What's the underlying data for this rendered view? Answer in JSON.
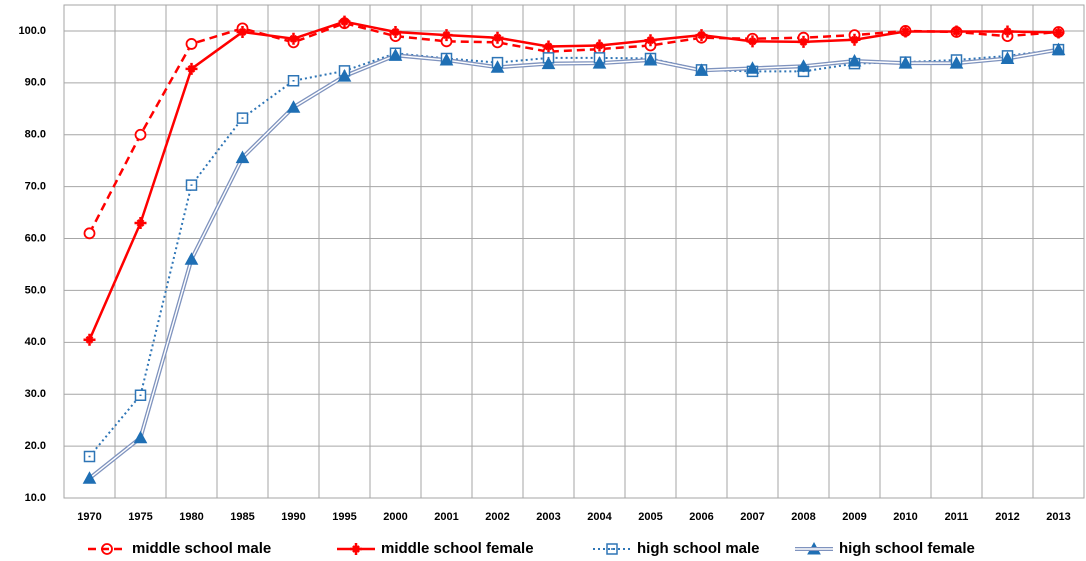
{
  "chart_data": {
    "type": "line",
    "categories": [
      "1970",
      "1975",
      "1980",
      "1985",
      "1990",
      "1995",
      "2000",
      "2001",
      "2002",
      "2003",
      "2004",
      "2005",
      "2006",
      "2007",
      "2008",
      "2009",
      "2010",
      "2011",
      "2012",
      "2013"
    ],
    "series": [
      {
        "name": "middle school male",
        "color": "#ff0000",
        "line_style": "dashed",
        "marker": "circle",
        "values": [
          61.0,
          80.0,
          97.5,
          100.5,
          97.8,
          101.5,
          99.0,
          98.0,
          97.8,
          96.0,
          96.5,
          97.2,
          98.7,
          98.5,
          98.7,
          99.2,
          100.0,
          99.8,
          99.0,
          99.8
        ]
      },
      {
        "name": "middle school female",
        "color": "#ff0000",
        "line_style": "solid",
        "marker": "plus",
        "values": [
          40.5,
          63.0,
          92.7,
          99.8,
          98.5,
          101.8,
          99.8,
          99.2,
          98.7,
          97.0,
          97.2,
          98.2,
          99.2,
          98.0,
          97.9,
          98.3,
          99.9,
          99.9,
          99.9,
          99.7
        ]
      },
      {
        "name": "high school male",
        "color": "#2e75b6",
        "line_style": "dotted",
        "marker": "square",
        "values": [
          18.0,
          29.8,
          70.3,
          83.2,
          90.4,
          92.3,
          95.7,
          94.7,
          93.9,
          94.8,
          94.8,
          94.7,
          92.5,
          92.2,
          92.2,
          93.7,
          94.0,
          94.4,
          95.2,
          96.4
        ]
      },
      {
        "name": "high school female",
        "color": "#1f6fb4",
        "line_style": "double",
        "marker": "triangle",
        "values": [
          13.8,
          21.6,
          56.0,
          75.6,
          85.3,
          91.3,
          95.3,
          94.4,
          93.0,
          93.7,
          93.8,
          94.4,
          92.4,
          92.8,
          93.2,
          94.2,
          93.8,
          93.8,
          94.7,
          96.4
        ]
      }
    ],
    "ylim": [
      10,
      105
    ],
    "yticks": [
      {
        "value": 10,
        "label": "10.0"
      },
      {
        "value": 20,
        "label": "20.0"
      },
      {
        "value": 30,
        "label": "30.0"
      },
      {
        "value": 40,
        "label": "40.0"
      },
      {
        "value": 50,
        "label": "50.0"
      },
      {
        "value": 60,
        "label": "60.0"
      },
      {
        "value": 70,
        "label": "70.0"
      },
      {
        "value": 80,
        "label": "80.0"
      },
      {
        "value": 90,
        "label": "90.0"
      },
      {
        "value": 100,
        "label": "100.0"
      }
    ],
    "grid": true,
    "legend": "bottom"
  }
}
